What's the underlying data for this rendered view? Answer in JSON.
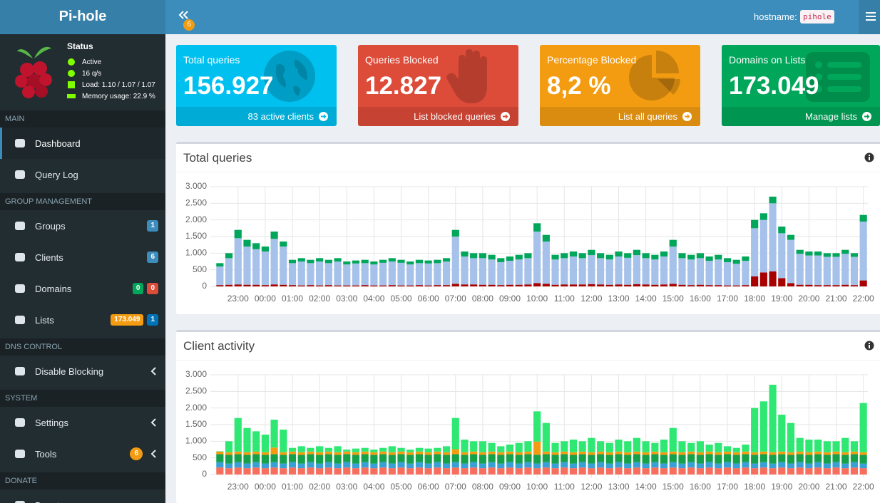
{
  "brand": "Pi-hole",
  "navbar": {
    "badge": "6",
    "hostname_label": "hostname:",
    "hostname": "pihole"
  },
  "status": {
    "title": "Status",
    "items": [
      "Active",
      "16 q/s",
      "Load: 1.10 / 1.07 / 1.07",
      "Memory usage: 22.9 %"
    ]
  },
  "sidebar": {
    "sections": [
      {
        "header": "MAIN",
        "items": [
          {
            "label": "Dashboard"
          },
          {
            "label": "Query Log"
          }
        ]
      },
      {
        "header": "GROUP MANAGEMENT",
        "items": [
          {
            "label": "Groups",
            "badges": [
              "1"
            ]
          },
          {
            "label": "Clients",
            "badges": [
              "6"
            ]
          },
          {
            "label": "Domains",
            "badges": [
              "0",
              "0"
            ]
          },
          {
            "label": "Lists",
            "badges": [
              "173.049",
              "1"
            ]
          }
        ]
      },
      {
        "header": "DNS CONTROL",
        "items": [
          {
            "label": "Disable Blocking"
          }
        ]
      },
      {
        "header": "SYSTEM",
        "items": [
          {
            "label": "Settings"
          },
          {
            "label": "Tools",
            "badges": [
              "6"
            ]
          }
        ]
      },
      {
        "header": "DONATE",
        "items": [
          {
            "label": "Donate"
          }
        ]
      }
    ]
  },
  "stats": [
    {
      "title": "Total queries",
      "value": "156.927",
      "footer": "83 active clients",
      "color": "#00c0ef"
    },
    {
      "title": "Queries Blocked",
      "value": "12.827",
      "footer": "List blocked queries",
      "color": "#dd4b39"
    },
    {
      "title": "Percentage Blocked",
      "value": "8,2 %",
      "footer": "List all queries",
      "color": "#f39c12"
    },
    {
      "title": "Domains on Lists",
      "value": "173.049",
      "footer": "Manage lists",
      "color": "#00a65a"
    }
  ],
  "chart_data": [
    {
      "type": "bar",
      "title": "Total queries",
      "stacked": true,
      "grid": true,
      "categories": [
        null,
        null,
        "23:00",
        null,
        null,
        "00:00",
        null,
        null,
        "01:00",
        null,
        null,
        "02:00",
        null,
        null,
        "03:00",
        null,
        null,
        "04:00",
        null,
        null,
        "05:00",
        null,
        null,
        "06:00",
        null,
        null,
        "07:00",
        null,
        null,
        "08:00",
        null,
        null,
        "09:00",
        null,
        null,
        "10:00",
        null,
        null,
        "11:00",
        null,
        null,
        "12:00",
        null,
        null,
        "13:00",
        null,
        null,
        "14:00",
        null,
        null,
        "15:00",
        null,
        null,
        "16:00",
        null,
        null,
        "17:00",
        null,
        null,
        "18:00",
        null,
        null,
        "19:00",
        null,
        null,
        "20:00",
        null,
        null,
        "21:00",
        null,
        null,
        "22:00"
      ],
      "ylim": [
        0,
        3000
      ],
      "yticks": [
        0,
        500,
        {
          "value": 1000,
          "label": "1.000"
        },
        {
          "value": 1500,
          "label": "1.500"
        },
        {
          "value": 2000,
          "label": "2.000"
        },
        {
          "value": 2500,
          "label": "2.500"
        },
        {
          "value": 3000,
          "label": "3.000"
        }
      ],
      "series": [
        {
          "color": "#a80000",
          "values": [
            40,
            50,
            60,
            50,
            50,
            40,
            60,
            50,
            40,
            30,
            40,
            30,
            40,
            30,
            30,
            30,
            40,
            30,
            30,
            40,
            30,
            30,
            40,
            30,
            40,
            40,
            80,
            60,
            60,
            50,
            50,
            40,
            50,
            50,
            60,
            100,
            80,
            50,
            60,
            60,
            60,
            70,
            60,
            50,
            60,
            50,
            70,
            60,
            50,
            60,
            80,
            50,
            40,
            50,
            40,
            40,
            30,
            30,
            40,
            300,
            420,
            450,
            250,
            100,
            50,
            50,
            40,
            40,
            40,
            50,
            40,
            180
          ]
        },
        {
          "color": "#a6c1ea",
          "values": [
            560,
            800,
            1390,
            1150,
            1070,
            1010,
            1370,
            1150,
            660,
            720,
            660,
            720,
            660,
            720,
            630,
            660,
            660,
            630,
            680,
            710,
            680,
            630,
            660,
            660,
            660,
            710,
            1420,
            840,
            790,
            800,
            760,
            690,
            720,
            760,
            790,
            1550,
            1270,
            760,
            790,
            840,
            790,
            870,
            790,
            760,
            840,
            810,
            870,
            790,
            760,
            840,
            1120,
            800,
            770,
            800,
            730,
            770,
            700,
            650,
            730,
            1450,
            1580,
            2050,
            1350,
            1300,
            930,
            880,
            890,
            850,
            850,
            930,
            850,
            1770
          ]
        },
        {
          "color": "#00a65a",
          "values": [
            100,
            150,
            250,
            200,
            180,
            150,
            220,
            150,
            100,
            100,
            100,
            100,
            100,
            100,
            90,
            90,
            100,
            90,
            90,
            100,
            90,
            90,
            100,
            90,
            100,
            100,
            200,
            150,
            150,
            150,
            140,
            120,
            130,
            140,
            150,
            250,
            200,
            140,
            150,
            150,
            150,
            160,
            150,
            140,
            150,
            140,
            160,
            150,
            140,
            150,
            200,
            150,
            140,
            150,
            130,
            140,
            120,
            120,
            130,
            250,
            200,
            200,
            200,
            150,
            120,
            120,
            120,
            110,
            110,
            120,
            110,
            200
          ]
        }
      ]
    },
    {
      "type": "bar",
      "title": "Client activity",
      "stacked": true,
      "grid": true,
      "categories": [
        null,
        null,
        "23:00",
        null,
        null,
        "00:00",
        null,
        null,
        "01:00",
        null,
        null,
        "02:00",
        null,
        null,
        "03:00",
        null,
        null,
        "04:00",
        null,
        null,
        "05:00",
        null,
        null,
        "06:00",
        null,
        null,
        "07:00",
        null,
        null,
        "08:00",
        null,
        null,
        "09:00",
        null,
        null,
        "10:00",
        null,
        null,
        "11:00",
        null,
        null,
        "12:00",
        null,
        null,
        "13:00",
        null,
        null,
        "14:00",
        null,
        null,
        "15:00",
        null,
        null,
        "16:00",
        null,
        null,
        "17:00",
        null,
        null,
        "18:00",
        null,
        null,
        "19:00",
        null,
        null,
        "20:00",
        null,
        null,
        "21:00",
        null,
        null,
        "22:00"
      ],
      "ylim": [
        0,
        3000
      ],
      "yticks": [
        0,
        500,
        {
          "value": 1000,
          "label": "1.000"
        },
        {
          "value": 1500,
          "label": "1.500"
        },
        {
          "value": 2000,
          "label": "2.000"
        },
        {
          "value": 2500,
          "label": "2.500"
        },
        {
          "value": 3000,
          "label": "3.000"
        }
      ],
      "series": [
        {
          "color": "#f76e5e",
          "values": [
            210,
            190,
            210,
            190,
            210,
            190,
            210,
            190,
            210,
            190,
            210,
            190,
            210,
            190,
            210,
            190,
            210,
            190,
            210,
            190,
            210,
            190,
            210,
            190,
            210,
            190,
            210,
            190,
            210,
            190,
            210,
            190,
            210,
            190,
            210,
            190,
            210,
            190,
            210,
            190,
            210,
            190,
            210,
            190,
            210,
            190,
            210,
            190,
            210,
            190,
            210,
            190,
            210,
            190,
            210,
            190,
            210,
            190,
            210,
            190,
            210,
            190,
            210,
            190,
            210,
            190,
            210,
            190,
            210,
            190,
            210,
            190
          ]
        },
        {
          "color": "#3a9fd6",
          "values": [
            160,
            140,
            160,
            140,
            160,
            140,
            160,
            140,
            160,
            140,
            160,
            140,
            160,
            140,
            160,
            140,
            160,
            140,
            160,
            140,
            160,
            140,
            160,
            140,
            160,
            140,
            160,
            140,
            160,
            140,
            160,
            140,
            160,
            140,
            160,
            140,
            160,
            140,
            160,
            140,
            160,
            140,
            160,
            140,
            160,
            140,
            160,
            140,
            160,
            140,
            160,
            140,
            160,
            140,
            160,
            140,
            160,
            140,
            160,
            140,
            160,
            140,
            160,
            140,
            160,
            140,
            160,
            140,
            160,
            140,
            160,
            140
          ]
        },
        {
          "color": "#15a04a",
          "values": [
            240,
            260,
            240,
            260,
            240,
            260,
            240,
            260,
            240,
            260,
            240,
            260,
            240,
            260,
            240,
            260,
            240,
            260,
            240,
            260,
            240,
            260,
            240,
            260,
            240,
            260,
            240,
            260,
            240,
            260,
            240,
            260,
            240,
            260,
            240,
            260,
            240,
            260,
            240,
            260,
            240,
            260,
            240,
            260,
            240,
            260,
            240,
            260,
            240,
            260,
            240,
            260,
            240,
            260,
            240,
            260,
            240,
            260,
            240,
            260,
            240,
            260,
            240,
            260,
            240,
            260,
            240,
            260,
            240,
            260,
            240,
            260
          ]
        },
        {
          "color": "#f39c12",
          "values": [
            80,
            80,
            80,
            80,
            80,
            80,
            200,
            80,
            80,
            80,
            80,
            80,
            80,
            80,
            80,
            80,
            80,
            80,
            80,
            80,
            80,
            80,
            80,
            80,
            80,
            80,
            150,
            80,
            80,
            80,
            80,
            80,
            80,
            80,
            80,
            400,
            80,
            80,
            80,
            80,
            80,
            80,
            80,
            80,
            80,
            80,
            80,
            80,
            80,
            80,
            80,
            80,
            80,
            80,
            80,
            80,
            80,
            80,
            80,
            80,
            80,
            80,
            80,
            80,
            80,
            80,
            80,
            80,
            80,
            80,
            80,
            80
          ]
        },
        {
          "color": "#2ee873",
          "values": [
            10,
            330,
            1010,
            730,
            610,
            530,
            840,
            680,
            110,
            180,
            110,
            180,
            110,
            180,
            60,
            110,
            110,
            80,
            110,
            180,
            110,
            80,
            110,
            110,
            110,
            180,
            940,
            380,
            310,
            330,
            260,
            180,
            210,
            280,
            310,
            910,
            860,
            280,
            310,
            380,
            310,
            430,
            310,
            280,
            360,
            330,
            410,
            330,
            260,
            380,
            710,
            330,
            260,
            330,
            210,
            280,
            160,
            130,
            210,
            1330,
            1510,
            2030,
            1110,
            880,
            410,
            380,
            360,
            330,
            310,
            430,
            310,
            1480
          ]
        }
      ]
    }
  ]
}
